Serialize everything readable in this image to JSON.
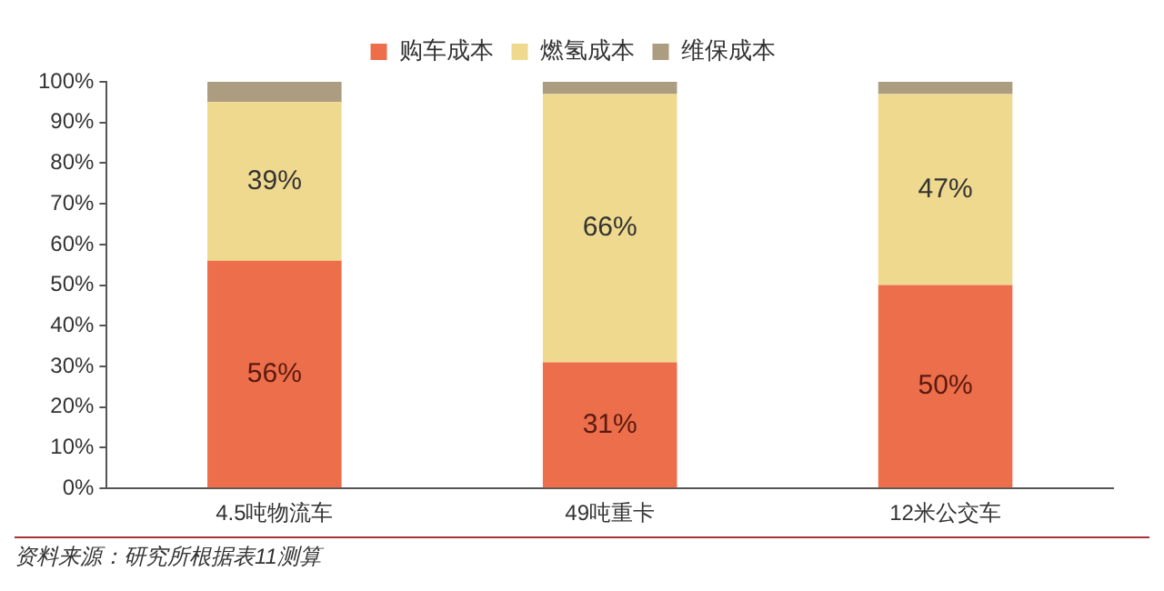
{
  "chart_data": {
    "type": "bar",
    "stacked": true,
    "categories": [
      "4.5吨物流车",
      "49吨重卡",
      "12米公交车"
    ],
    "series": [
      {
        "name": "购车成本",
        "color": "#ec6e4a",
        "values": [
          56,
          31,
          50
        ],
        "value_labels": [
          "56%",
          "31%",
          "50%"
        ]
      },
      {
        "name": "燃氢成本",
        "color": "#efd98e",
        "values": [
          39,
          66,
          47
        ],
        "value_labels": [
          "39%",
          "66%",
          "47%"
        ]
      },
      {
        "name": "维保成本",
        "color": "#ad9d80",
        "values": [
          5,
          3,
          3
        ]
      }
    ],
    "ylim": [
      0,
      100
    ],
    "yticks": [
      {
        "value": 0,
        "label": "0%"
      },
      {
        "value": 10,
        "label": "10%"
      },
      {
        "value": 20,
        "label": "20%"
      },
      {
        "value": 30,
        "label": "30%"
      },
      {
        "value": 40,
        "label": "40%"
      },
      {
        "value": 50,
        "label": "50%"
      },
      {
        "value": 60,
        "label": "60%"
      },
      {
        "value": 70,
        "label": "70%"
      },
      {
        "value": 80,
        "label": "80%"
      },
      {
        "value": 90,
        "label": "90%"
      },
      {
        "value": 100,
        "label": "100%"
      }
    ],
    "grid": false,
    "legend": "top",
    "annotations": [
      "资料来源：研究所根据表11测算"
    ]
  }
}
